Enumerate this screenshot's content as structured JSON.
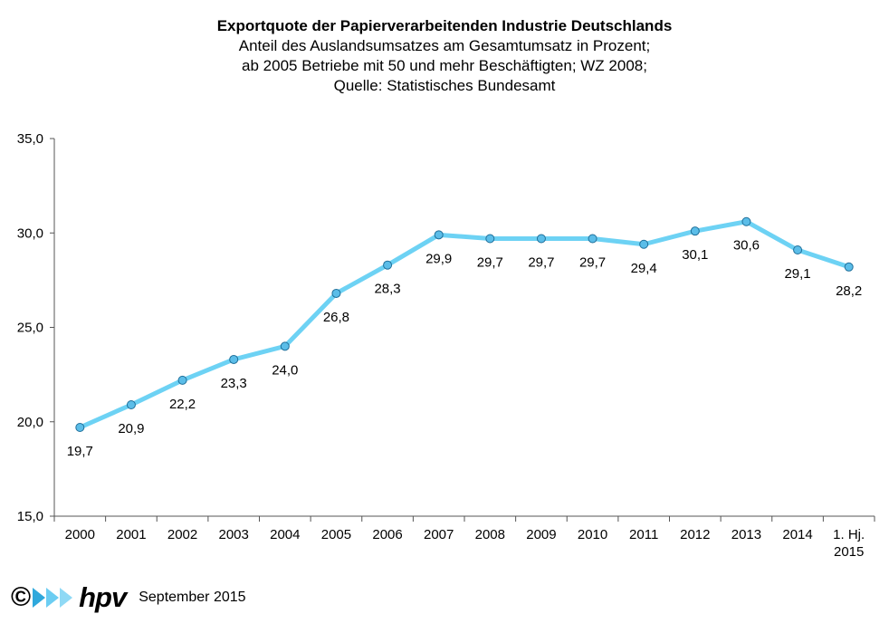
{
  "chart_data": {
    "type": "line",
    "title": "Exportquote der Papierverarbeitenden Industrie Deutschlands",
    "subtitle": [
      "Anteil des Auslandsumsatzes  am Gesamtumsatz  in Prozent;",
      "ab 2005 Betriebe mit 50 und mehr Beschäftigten; WZ 2008;",
      "Quelle:  Statistisches  Bundesamt"
    ],
    "categories": [
      "2000",
      "2001",
      "2002",
      "2003",
      "2004",
      "2005",
      "2006",
      "2007",
      "2008",
      "2009",
      "2010",
      "2011",
      "2012",
      "2013",
      "2014",
      "1. Hj.\n2015"
    ],
    "values": [
      19.7,
      20.9,
      22.2,
      23.3,
      24.0,
      26.8,
      28.3,
      29.9,
      29.7,
      29.7,
      29.7,
      29.4,
      30.1,
      30.6,
      29.1,
      28.2
    ],
    "value_labels": [
      "19,7",
      "20,9",
      "22,2",
      "23,3",
      "24,0",
      "26,8",
      "28,3",
      "29,9",
      "29,7",
      "29,7",
      "29,7",
      "29,4",
      "30,1",
      "30,6",
      "29,1",
      "28,2"
    ],
    "ylim": [
      15,
      35
    ],
    "y_ticks": [
      15,
      20,
      25,
      30,
      35
    ],
    "y_tick_labels": [
      "15,0",
      "20,0",
      "25,0",
      "30,0",
      "35,0"
    ],
    "grid": false,
    "line_color": "#6dd2f4",
    "marker_color": "#5bbde8",
    "marker_edge_color": "#1f6f9a"
  },
  "footer": {
    "copyright": "©",
    "brand": "hpv",
    "date": "September 2015"
  }
}
